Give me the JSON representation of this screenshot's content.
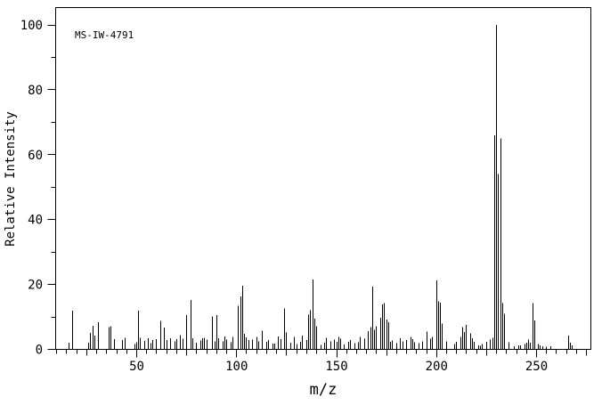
{
  "colors": {
    "background": "#ffffff",
    "foreground": "#000000"
  },
  "chart_data": {
    "type": "bar",
    "title": "",
    "annotation": "MS-IW-4791",
    "xlabel": "m/z",
    "ylabel": "Relative Intensity",
    "xlim": [
      9.5,
      277.5
    ],
    "ylim": [
      0,
      100
    ],
    "x_ticks_major": [
      50,
      100,
      150,
      200,
      250
    ],
    "x_minor_step": 5,
    "y_ticks_major": [
      0,
      20,
      40,
      60,
      80,
      100
    ],
    "y_minor_step": 10,
    "grid": false,
    "legend": false,
    "peaks": [
      [
        16,
        2.0
      ],
      [
        18,
        11.9
      ],
      [
        26,
        2.1
      ],
      [
        27,
        5.1
      ],
      [
        28,
        7.3
      ],
      [
        29,
        4.2
      ],
      [
        31,
        8.3
      ],
      [
        36,
        6.9
      ],
      [
        37,
        7.2
      ],
      [
        39,
        3.1
      ],
      [
        43,
        2.9
      ],
      [
        44,
        3.6
      ],
      [
        49,
        1.7
      ],
      [
        50,
        2.2
      ],
      [
        51,
        11.9
      ],
      [
        52,
        3.6
      ],
      [
        54,
        2.6
      ],
      [
        56,
        3.4
      ],
      [
        57,
        1.9
      ],
      [
        58,
        2.9
      ],
      [
        60,
        3.1
      ],
      [
        62,
        8.8
      ],
      [
        64,
        6.7
      ],
      [
        65,
        2.9
      ],
      [
        67,
        3.4
      ],
      [
        69,
        2.5
      ],
      [
        70,
        3.1
      ],
      [
        72,
        4.4
      ],
      [
        73,
        3.3
      ],
      [
        75,
        10.6
      ],
      [
        77,
        15.2
      ],
      [
        78,
        3.4
      ],
      [
        80,
        2.1
      ],
      [
        82,
        2.8
      ],
      [
        83,
        3.4
      ],
      [
        84,
        3.6
      ],
      [
        85,
        3.0
      ],
      [
        88,
        10.1
      ],
      [
        89,
        2.5
      ],
      [
        90,
        10.6
      ],
      [
        91,
        3.4
      ],
      [
        93,
        2.5
      ],
      [
        94,
        4.0
      ],
      [
        95,
        3.0
      ],
      [
        97,
        2.2
      ],
      [
        98,
        3.9
      ],
      [
        101,
        13.5
      ],
      [
        102,
        16.3
      ],
      [
        103,
        19.6
      ],
      [
        104,
        4.8
      ],
      [
        105,
        3.7
      ],
      [
        106,
        2.9
      ],
      [
        108,
        3.0
      ],
      [
        110,
        3.8
      ],
      [
        111,
        2.5
      ],
      [
        113,
        5.7
      ],
      [
        115,
        2.3
      ],
      [
        116,
        2.9
      ],
      [
        118,
        1.8
      ],
      [
        119,
        1.8
      ],
      [
        121,
        4.0
      ],
      [
        122,
        3.2
      ],
      [
        124,
        12.6
      ],
      [
        125,
        5.2
      ],
      [
        127,
        2.0
      ],
      [
        129,
        3.9
      ],
      [
        130,
        1.6
      ],
      [
        132,
        2.3
      ],
      [
        133,
        4.3
      ],
      [
        135,
        2.9
      ],
      [
        136,
        10.7
      ],
      [
        137,
        12.1
      ],
      [
        138,
        21.5
      ],
      [
        139,
        9.4
      ],
      [
        140,
        7.1
      ],
      [
        142,
        1.4
      ],
      [
        144,
        2.0
      ],
      [
        145,
        3.5
      ],
      [
        147,
        2.5
      ],
      [
        149,
        3.0
      ],
      [
        150,
        2.3
      ],
      [
        151,
        3.9
      ],
      [
        152,
        3.3
      ],
      [
        154,
        1.5
      ],
      [
        156,
        2.3
      ],
      [
        157,
        2.9
      ],
      [
        159,
        1.9
      ],
      [
        161,
        2.2
      ],
      [
        162,
        3.8
      ],
      [
        164,
        3.3
      ],
      [
        166,
        5.6
      ],
      [
        167,
        6.8
      ],
      [
        168,
        19.3
      ],
      [
        169,
        6.1
      ],
      [
        170,
        7.2
      ],
      [
        172,
        9.7
      ],
      [
        173,
        13.9
      ],
      [
        174,
        14.2
      ],
      [
        175,
        9.2
      ],
      [
        176,
        8.3
      ],
      [
        177,
        2.3
      ],
      [
        178,
        2.8
      ],
      [
        180,
        1.9
      ],
      [
        182,
        3.4
      ],
      [
        183,
        2.5
      ],
      [
        185,
        2.9
      ],
      [
        187,
        3.8
      ],
      [
        188,
        3.1
      ],
      [
        189,
        2.2
      ],
      [
        191,
        1.9
      ],
      [
        193,
        2.5
      ],
      [
        195,
        5.5
      ],
      [
        197,
        3.3
      ],
      [
        198,
        3.8
      ],
      [
        200,
        21.3
      ],
      [
        201,
        14.8
      ],
      [
        202,
        14.4
      ],
      [
        203,
        8.0
      ],
      [
        205,
        2.5
      ],
      [
        209,
        1.6
      ],
      [
        210,
        2.3
      ],
      [
        212,
        3.9
      ],
      [
        213,
        6.8
      ],
      [
        214,
        5.3
      ],
      [
        215,
        7.5
      ],
      [
        217,
        5.0
      ],
      [
        218,
        3.4
      ],
      [
        219,
        2.3
      ],
      [
        221,
        1.3
      ],
      [
        222,
        1.1
      ],
      [
        223,
        1.6
      ],
      [
        225,
        2.3
      ],
      [
        227,
        3.0
      ],
      [
        228,
        3.5
      ],
      [
        229,
        66.0
      ],
      [
        230,
        100.0
      ],
      [
        231,
        54.0
      ],
      [
        232,
        65.0
      ],
      [
        233,
        14.2
      ],
      [
        234,
        11.0
      ],
      [
        236,
        2.2
      ],
      [
        239,
        1.0
      ],
      [
        241,
        1.2
      ],
      [
        242,
        1.2
      ],
      [
        244,
        1.6
      ],
      [
        245,
        2.1
      ],
      [
        246,
        3.0
      ],
      [
        247,
        2.1
      ],
      [
        248,
        14.2
      ],
      [
        249,
        8.9
      ],
      [
        251,
        1.6
      ],
      [
        252,
        1.2
      ],
      [
        253,
        1.0
      ],
      [
        255,
        0.8
      ],
      [
        257,
        1.0
      ],
      [
        266,
        4.3
      ],
      [
        267,
        2.1
      ],
      [
        268,
        1.3
      ]
    ]
  }
}
